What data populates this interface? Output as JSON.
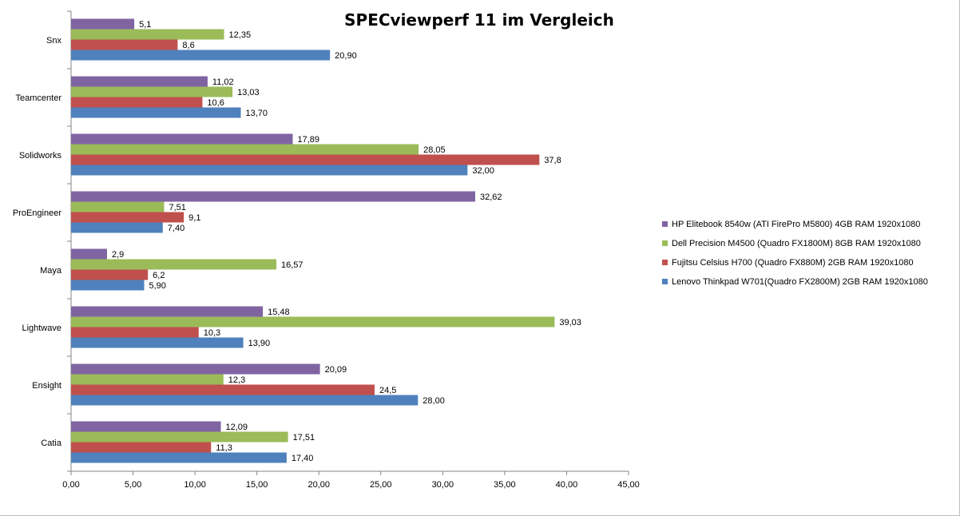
{
  "chart_data": {
    "type": "bar",
    "orientation": "horizontal",
    "title": "SPECviewperf 11 im Vergleich",
    "xlabel": "",
    "ylabel": "",
    "categories": [
      "Snx",
      "Teamcenter",
      "Solidworks",
      "ProEngineer",
      "Maya",
      "Lightwave",
      "Ensight",
      "Catia"
    ],
    "series": [
      {
        "name": "HP Elitebook 8540w (ATI FirePro M5800) 4GB RAM 1920x1080",
        "color": "#8064a2",
        "values": [
          5.1,
          11.02,
          17.89,
          32.62,
          2.9,
          15.48,
          20.09,
          12.09
        ],
        "labels": [
          "5,1",
          "11,02",
          "17,89",
          "32,62",
          "2,9",
          "15,48",
          "20,09",
          "12,09"
        ]
      },
      {
        "name": "Dell Precision M4500 (Quadro FX1800M) 8GB RAM 1920x1080",
        "color": "#9bbb59",
        "values": [
          12.35,
          13.03,
          28.05,
          7.51,
          16.57,
          39.03,
          12.3,
          17.51
        ],
        "labels": [
          "12,35",
          "13,03",
          "28,05",
          "7,51",
          "16,57",
          "39,03",
          "12,3",
          "17,51"
        ]
      },
      {
        "name": "Fujitsu Celsius H700 (Quadro FX880M) 2GB RAM 1920x1080",
        "color": "#c0504d",
        "values": [
          8.6,
          10.6,
          37.8,
          9.1,
          6.2,
          10.3,
          24.5,
          11.3
        ],
        "labels": [
          "8,6",
          "10,6",
          "37,8",
          "9,1",
          "6,2",
          "10,3",
          "24,5",
          "11,3"
        ]
      },
      {
        "name": "Lenovo Thinkpad W701(Quadro FX2800M) 2GB RAM 1920x1080",
        "color": "#4f81bd",
        "values": [
          20.9,
          13.7,
          32.0,
          7.4,
          5.9,
          13.9,
          28.0,
          17.4
        ],
        "labels": [
          "20,90",
          "13,70",
          "32,00",
          "7,40",
          "5,90",
          "13,90",
          "28,00",
          "17,40"
        ]
      }
    ],
    "xlim": [
      0,
      45
    ],
    "ticks": [
      0,
      5,
      10,
      15,
      20,
      25,
      30,
      35,
      40,
      45
    ],
    "tick_labels": [
      "0,00",
      "5,00",
      "10,00",
      "15,00",
      "20,00",
      "25,00",
      "30,00",
      "35,00",
      "40,00",
      "45,00"
    ],
    "grid": false,
    "legend_position": "right"
  }
}
